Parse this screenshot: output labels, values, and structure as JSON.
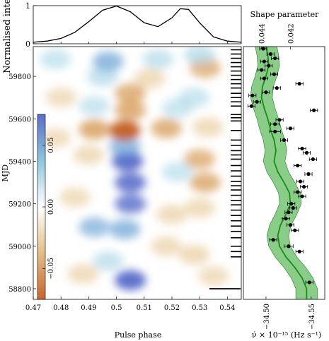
{
  "chart_data": [
    {
      "panel": "top-profile",
      "type": "line",
      "ylabel": "Normalised intensity",
      "ylim": [
        0,
        1
      ],
      "yticks": [
        "0",
        "1"
      ],
      "xlim": [
        0.47,
        0.545
      ],
      "x": [
        0.47,
        0.475,
        0.48,
        0.485,
        0.49,
        0.495,
        0.5,
        0.505,
        0.51,
        0.515,
        0.52,
        0.523,
        0.526,
        0.53,
        0.535,
        0.54,
        0.545
      ],
      "y": [
        0.04,
        0.07,
        0.14,
        0.3,
        0.58,
        0.88,
        0.99,
        0.84,
        0.55,
        0.45,
        0.68,
        0.92,
        0.9,
        0.55,
        0.18,
        0.07,
        0.04
      ]
    },
    {
      "panel": "residual-map",
      "type": "heatmap",
      "xlabel": "Pulse phase",
      "ylabel": "MJD",
      "xlim": [
        0.47,
        0.545
      ],
      "ylim": [
        58750,
        59940
      ],
      "xtick_values": [
        0.47,
        0.48,
        0.49,
        0.5,
        0.51,
        0.52,
        0.53,
        0.54
      ],
      "xtick_labels": [
        "0.47",
        "0.48",
        "0.49",
        "0.5",
        "0.51",
        "0.52",
        "0.53",
        "0.54"
      ],
      "ytick_values": [
        58800,
        59000,
        59200,
        59400,
        59600,
        59800
      ],
      "ytick_labels": [
        "58800",
        "59000",
        "59200",
        "59400",
        "59600",
        "59800"
      ],
      "colorbar": {
        "ticks": [
          0.05,
          0.0,
          -0.05
        ],
        "tick_labels": [
          "0.05",
          "0.00",
          "−0.05"
        ],
        "colors": [
          "#5b6cc8",
          "#8fc6de",
          "#ffffff",
          "#e3be86",
          "#c8642e"
        ]
      },
      "blobs": [
        {
          "x": 0.505,
          "mjd": 58840,
          "v": 0.07
        },
        {
          "x": 0.488,
          "mjd": 58870,
          "v": -0.02
        },
        {
          "x": 0.535,
          "mjd": 58860,
          "v": -0.015
        },
        {
          "x": 0.497,
          "mjd": 58930,
          "v": 0.02
        },
        {
          "x": 0.518,
          "mjd": 59000,
          "v": -0.02
        },
        {
          "x": 0.528,
          "mjd": 58960,
          "v": -0.025
        },
        {
          "x": 0.503,
          "mjd": 59080,
          "v": 0.04
        },
        {
          "x": 0.492,
          "mjd": 59090,
          "v": 0.03
        },
        {
          "x": 0.52,
          "mjd": 59150,
          "v": -0.02
        },
        {
          "x": 0.505,
          "mjd": 59200,
          "v": 0.05
        },
        {
          "x": 0.53,
          "mjd": 59180,
          "v": -0.02
        },
        {
          "x": 0.485,
          "mjd": 59230,
          "v": -0.015
        },
        {
          "x": 0.505,
          "mjd": 59300,
          "v": 0.06
        },
        {
          "x": 0.532,
          "mjd": 59300,
          "v": -0.035
        },
        {
          "x": 0.522,
          "mjd": 59350,
          "v": 0.015
        },
        {
          "x": 0.504,
          "mjd": 59400,
          "v": 0.07
        },
        {
          "x": 0.49,
          "mjd": 59430,
          "v": -0.02
        },
        {
          "x": 0.53,
          "mjd": 59410,
          "v": -0.03
        },
        {
          "x": 0.503,
          "mjd": 59470,
          "v": 0.04
        },
        {
          "x": 0.492,
          "mjd": 59550,
          "v": -0.045
        },
        {
          "x": 0.503,
          "mjd": 59545,
          "v": -0.07
        },
        {
          "x": 0.518,
          "mjd": 59555,
          "v": -0.035
        },
        {
          "x": 0.533,
          "mjd": 59560,
          "v": -0.02
        },
        {
          "x": 0.478,
          "mjd": 59510,
          "v": -0.015
        },
        {
          "x": 0.505,
          "mjd": 59640,
          "v": -0.04
        },
        {
          "x": 0.492,
          "mjd": 59660,
          "v": 0.015
        },
        {
          "x": 0.522,
          "mjd": 59650,
          "v": 0.015
        },
        {
          "x": 0.505,
          "mjd": 59720,
          "v": -0.035
        },
        {
          "x": 0.48,
          "mjd": 59700,
          "v": -0.015
        },
        {
          "x": 0.528,
          "mjd": 59700,
          "v": 0.015
        },
        {
          "x": 0.495,
          "mjd": 59800,
          "v": 0.025
        },
        {
          "x": 0.512,
          "mjd": 59790,
          "v": -0.02
        },
        {
          "x": 0.532,
          "mjd": 59840,
          "v": -0.03
        },
        {
          "x": 0.497,
          "mjd": 59870,
          "v": 0.04
        },
        {
          "x": 0.515,
          "mjd": 59880,
          "v": 0.02
        },
        {
          "x": 0.478,
          "mjd": 59880,
          "v": 0.015
        },
        {
          "x": 0.53,
          "mjd": 59900,
          "v": 0.025
        }
      ],
      "observation_marks_mjd": [
        58950,
        58975,
        59000,
        59040,
        59070,
        59095,
        59120,
        59145,
        59170,
        59195,
        59215,
        59240,
        59265,
        59285,
        59305,
        59330,
        59355,
        59380,
        59410,
        59430,
        59450,
        59475,
        59500,
        59545,
        59590,
        59605,
        59620,
        59660,
        59680,
        59700,
        59720,
        59745,
        59765,
        59785,
        59805,
        59825,
        59845,
        59865,
        59885,
        59905,
        59925
      ]
    },
    {
      "panel": "frequency-derivative",
      "type": "scatter",
      "xlabel_bottom": "ν̇ × 10⁻¹⁵ (Hz s⁻¹)",
      "xlabel_top": "Shape parameter",
      "xlim_bottom": [
        -34.475,
        -34.565
      ],
      "xticks_bottom": [
        -34.5,
        -34.55
      ],
      "xticklabels_bottom": [
        "−34.50",
        "−34.55"
      ],
      "xticks_top_x": [
        -34.495,
        -34.527
      ],
      "xticklabels_top": [
        "0.044",
        "0.042"
      ],
      "ylim": [
        58750,
        59940
      ],
      "points": [
        {
          "mjd": 58830,
          "nudot": -34.548,
          "err": 0.004
        },
        {
          "mjd": 58975,
          "nudot": -34.537,
          "err": 0.004
        },
        {
          "mjd": 59000,
          "nudot": -34.525,
          "err": 0.005
        },
        {
          "mjd": 59030,
          "nudot": -34.508,
          "err": 0.004
        },
        {
          "mjd": 59075,
          "nudot": -34.532,
          "err": 0.004
        },
        {
          "mjd": 59100,
          "nudot": -34.527,
          "err": 0.004
        },
        {
          "mjd": 59130,
          "nudot": -34.522,
          "err": 0.004
        },
        {
          "mjd": 59160,
          "nudot": -34.525,
          "err": 0.004
        },
        {
          "mjd": 59180,
          "nudot": -34.53,
          "err": 0.004
        },
        {
          "mjd": 59200,
          "nudot": -34.528,
          "err": 0.004
        },
        {
          "mjd": 59235,
          "nudot": -34.54,
          "err": 0.004
        },
        {
          "mjd": 59255,
          "nudot": -34.535,
          "err": 0.004
        },
        {
          "mjd": 59280,
          "nudot": -34.542,
          "err": 0.004
        },
        {
          "mjd": 59305,
          "nudot": -34.538,
          "err": 0.004
        },
        {
          "mjd": 59340,
          "nudot": -34.547,
          "err": 0.004
        },
        {
          "mjd": 59380,
          "nudot": -34.535,
          "err": 0.004
        },
        {
          "mjd": 59410,
          "nudot": -34.552,
          "err": 0.004
        },
        {
          "mjd": 59440,
          "nudot": -34.545,
          "err": 0.004
        },
        {
          "mjd": 59460,
          "nudot": -34.54,
          "err": 0.004
        },
        {
          "mjd": 59500,
          "nudot": -34.52,
          "err": 0.004
        },
        {
          "mjd": 59540,
          "nudot": -34.51,
          "err": 0.006
        },
        {
          "mjd": 59555,
          "nudot": -34.527,
          "err": 0.004
        },
        {
          "mjd": 59575,
          "nudot": -34.51,
          "err": 0.005
        },
        {
          "mjd": 59595,
          "nudot": -34.515,
          "err": 0.004
        },
        {
          "mjd": 59640,
          "nudot": -34.553,
          "err": 0.004
        },
        {
          "mjd": 59660,
          "nudot": -34.484,
          "err": 0.004
        },
        {
          "mjd": 59680,
          "nudot": -34.49,
          "err": 0.004
        },
        {
          "mjd": 59710,
          "nudot": -34.485,
          "err": 0.004
        },
        {
          "mjd": 59725,
          "nudot": -34.5,
          "err": 0.004
        },
        {
          "mjd": 59745,
          "nudot": -34.512,
          "err": 0.004
        },
        {
          "mjd": 59765,
          "nudot": -34.537,
          "err": 0.004
        },
        {
          "mjd": 59790,
          "nudot": -34.498,
          "err": 0.004
        },
        {
          "mjd": 59810,
          "nudot": -34.509,
          "err": 0.004
        },
        {
          "mjd": 59830,
          "nudot": -34.495,
          "err": 0.004
        },
        {
          "mjd": 59850,
          "nudot": -34.503,
          "err": 0.004
        },
        {
          "mjd": 59870,
          "nudot": -34.498,
          "err": 0.004
        },
        {
          "mjd": 59885,
          "nudot": -34.51,
          "err": 0.004
        },
        {
          "mjd": 59905,
          "nudot": -34.505,
          "err": 0.004
        },
        {
          "mjd": 59930,
          "nudot": -34.497,
          "err": 0.004
        }
      ],
      "model_curve": {
        "mjd": [
          58750,
          58800,
          58850,
          58900,
          58950,
          59000,
          59050,
          59100,
          59150,
          59200,
          59250,
          59300,
          59350,
          59400,
          59450,
          59500,
          59550,
          59600,
          59650,
          59700,
          59750,
          59800,
          59850,
          59900,
          59940
        ],
        "center": [
          -34.545,
          -34.545,
          -34.54,
          -34.532,
          -34.522,
          -34.515,
          -34.513,
          -34.516,
          -34.522,
          -34.527,
          -34.526,
          -34.52,
          -34.513,
          -34.509,
          -34.511,
          -34.509,
          -34.505,
          -34.502,
          -34.498,
          -34.495,
          -34.496,
          -34.5,
          -34.503,
          -34.502,
          -34.5
        ],
        "halfwidth": [
          0.012,
          0.012,
          0.012,
          0.012,
          0.012,
          0.012,
          0.012,
          0.012,
          0.012,
          0.012,
          0.012,
          0.012,
          0.012,
          0.012,
          0.012,
          0.012,
          0.012,
          0.012,
          0.012,
          0.012,
          0.012,
          0.012,
          0.012,
          0.012,
          0.012
        ],
        "line_color": "#1a8a1a",
        "band_color": "#6cc06c"
      }
    }
  ]
}
